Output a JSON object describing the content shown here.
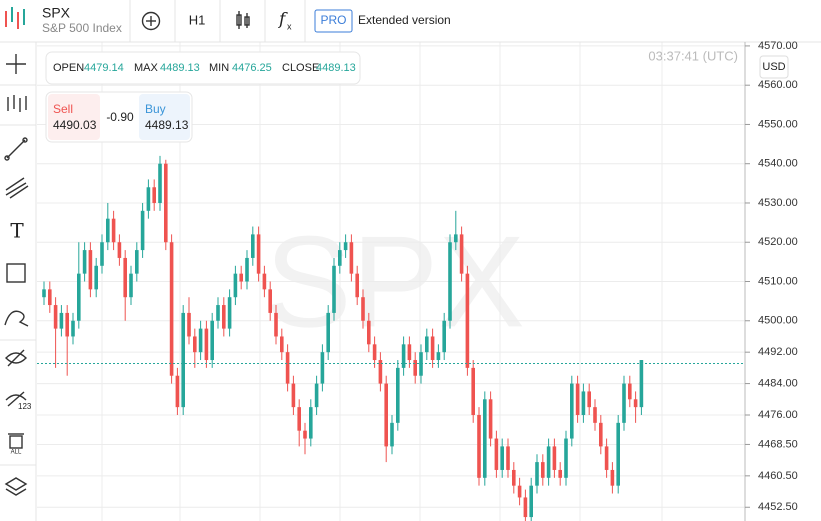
{
  "header": {
    "symbol": "SPX",
    "name": "S&P 500 Index",
    "timeframe": "H1",
    "pro": "PRO",
    "extended": "Extended version"
  },
  "ohlc_bar": {
    "open_label": "OPEN",
    "open": "4479.14",
    "max_label": "MAX",
    "max": "4489.13",
    "min_label": "MIN",
    "min": "4476.25",
    "close_label": "CLOSE",
    "close": "4489.13"
  },
  "trade": {
    "sell_label": "Sell",
    "sell": "4490.03",
    "spread": "-0.90",
    "buy_label": "Buy",
    "buy": "4489.13"
  },
  "clock": "03:37:41 (UTC)",
  "currency": "USD",
  "watermark": "SPX",
  "chart_data": {
    "type": "candlestick",
    "up_color": "#26a69a",
    "down_color": "#ef5350",
    "grid": true,
    "ylim": [
      4449,
      4571
    ],
    "yticks": [
      {
        "value": 4570,
        "label": "4570.00"
      },
      {
        "value": 4560,
        "label": "4560.00"
      },
      {
        "value": 4550,
        "label": "4550.00"
      },
      {
        "value": 4540,
        "label": "4540.00"
      },
      {
        "value": 4530,
        "label": "4530.00"
      },
      {
        "value": 4520,
        "label": "4520.00"
      },
      {
        "value": 4510,
        "label": "4510.00"
      },
      {
        "value": 4500,
        "label": "4500.00"
      },
      {
        "value": 4492,
        "label": "4492.00"
      },
      {
        "value": 4484,
        "label": "4484.00"
      },
      {
        "value": 4476,
        "label": "4476.00"
      },
      {
        "value": 4468.5,
        "label": "4468.50"
      },
      {
        "value": 4460.5,
        "label": "4460.50"
      },
      {
        "value": 4452.5,
        "label": "4452.50"
      }
    ],
    "current_price": 4489.13,
    "open": [
      4506,
      4508,
      4504,
      4498,
      4502,
      4496,
      4500,
      4512,
      4518,
      4508,
      4514,
      4520,
      4526,
      4520,
      4516,
      4506,
      4512,
      4518,
      4528,
      4534,
      4530,
      4540,
      4520,
      4486,
      4478,
      4502,
      4496,
      4492,
      4498,
      4490,
      4500,
      4504,
      4498,
      4506,
      4512,
      4510,
      4516,
      4522,
      4512,
      4508,
      4502,
      4496,
      4492,
      4484,
      4478,
      4472,
      4470,
      4478,
      4484,
      4492,
      4502,
      4514,
      4518,
      4520,
      4512,
      4506,
      4500,
      4494,
      4490,
      4484,
      4468,
      4474,
      4488,
      4494,
      4490,
      4486,
      4492,
      4496,
      4490,
      4492,
      4500,
      4520,
      4522,
      4512,
      4488,
      4476,
      4460,
      4480,
      4470,
      4462,
      4468,
      4462,
      4458,
      4455,
      4450,
      4458,
      4464,
      4460,
      4468,
      4462,
      4460,
      4470,
      4484,
      4476,
      4482,
      4478,
      4474,
      4468,
      4462,
      4458,
      4474,
      4484,
      4480,
      4478
    ],
    "high": [
      4510,
      4510,
      4506,
      4504,
      4504,
      4502,
      4520,
      4520,
      4520,
      4516,
      4522,
      4530,
      4528,
      4522,
      4518,
      4514,
      4520,
      4530,
      4536,
      4536,
      4542,
      4541,
      4522,
      4488,
      4504,
      4506,
      4498,
      4500,
      4500,
      4502,
      4506,
      4506,
      4508,
      4514,
      4514,
      4518,
      4524,
      4524,
      4514,
      4510,
      4504,
      4498,
      4494,
      4486,
      4480,
      4474,
      4480,
      4486,
      4494,
      4504,
      4516,
      4520,
      4522,
      4522,
      4514,
      4508,
      4502,
      4496,
      4492,
      4486,
      4476,
      4490,
      4496,
      4496,
      4492,
      4494,
      4498,
      4498,
      4494,
      4502,
      4522,
      4528,
      4524,
      4514,
      4490,
      4478,
      4482,
      4482,
      4472,
      4470,
      4470,
      4464,
      4460,
      4457,
      4460,
      4466,
      4466,
      4470,
      4470,
      4464,
      4472,
      4486,
      4486,
      4484,
      4484,
      4480,
      4476,
      4470,
      4464,
      4476,
      4486,
      4486,
      4482,
      4490
    ],
    "low": [
      4504,
      4502,
      4488,
      4496,
      4486,
      4494,
      4498,
      4510,
      4506,
      4506,
      4512,
      4518,
      4518,
      4514,
      4500,
      4504,
      4510,
      4516,
      4526,
      4528,
      4528,
      4518,
      4484,
      4476,
      4476,
      4494,
      4488,
      4490,
      4488,
      4488,
      4498,
      4496,
      4496,
      4504,
      4508,
      4508,
      4514,
      4510,
      4506,
      4500,
      4494,
      4490,
      4482,
      4476,
      4468,
      4466,
      4468,
      4476,
      4482,
      4490,
      4500,
      4512,
      4516,
      4510,
      4504,
      4498,
      4492,
      4488,
      4482,
      4464,
      4466,
      4472,
      4486,
      4488,
      4484,
      4484,
      4490,
      4488,
      4488,
      4490,
      4498,
      4518,
      4510,
      4486,
      4474,
      4458,
      4458,
      4468,
      4460,
      4460,
      4460,
      4456,
      4453,
      4449,
      4449,
      4456,
      4458,
      4458,
      4460,
      4458,
      4458,
      4468,
      4474,
      4474,
      4476,
      4472,
      4466,
      4460,
      4456,
      4456,
      4472,
      4478,
      4474,
      4476
    ],
    "close": [
      4508,
      4504,
      4498,
      4502,
      4496,
      4500,
      4512,
      4518,
      4508,
      4514,
      4520,
      4526,
      4520,
      4516,
      4506,
      4512,
      4518,
      4528,
      4534,
      4530,
      4540,
      4520,
      4486,
      4478,
      4502,
      4496,
      4492,
      4498,
      4490,
      4500,
      4504,
      4498,
      4506,
      4512,
      4510,
      4516,
      4522,
      4512,
      4508,
      4502,
      4496,
      4492,
      4484,
      4478,
      4472,
      4470,
      4478,
      4484,
      4492,
      4502,
      4514,
      4518,
      4520,
      4512,
      4506,
      4500,
      4494,
      4490,
      4484,
      4468,
      4474,
      4488,
      4494,
      4490,
      4486,
      4492,
      4496,
      4490,
      4492,
      4500,
      4520,
      4522,
      4512,
      4488,
      4476,
      4460,
      4480,
      4470,
      4462,
      4468,
      4462,
      4458,
      4455,
      4450,
      4458,
      4464,
      4460,
      4468,
      4462,
      4460,
      4470,
      4484,
      4476,
      4482,
      4478,
      4474,
      4468,
      4462,
      4458,
      4474,
      4484,
      4480,
      4478,
      4490
    ]
  }
}
